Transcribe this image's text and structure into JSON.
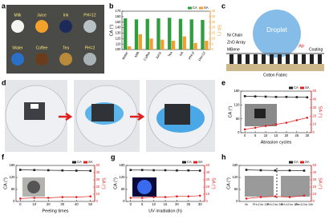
{
  "panel_labels": [
    "a",
    "b",
    "c",
    "d",
    "e",
    "f",
    "g",
    "h"
  ],
  "photo_a": {
    "labels": [
      "Milk",
      "Juice",
      "Ink",
      "PH=12",
      "Water",
      "Coffee",
      "Tea",
      "PH=2"
    ]
  },
  "diagram_c": {
    "labels": [
      "Droplet",
      "Ni Chain",
      "ZnO Array",
      "MBene",
      "Air",
      "Coating",
      "Cotton Fabric"
    ]
  },
  "chart_data": [
    {
      "type": "bar",
      "categories": [
        "Water",
        "Milk",
        "Coffee",
        "Juice",
        "Tea",
        "Ink",
        "PH=2",
        "PH=12"
      ],
      "series": [
        {
          "name": "CA",
          "color": "#2e9e3e",
          "values": [
            157,
            155,
            156,
            157,
            158,
            156,
            155,
            154
          ]
        },
        {
          "name": "SA",
          "color": "#f0a030",
          "axis": "y2",
          "values": [
            3,
            14,
            10,
            9,
            8,
            12,
            6,
            8
          ]
        }
      ],
      "ylabel": "CA (°)",
      "y2label": "SA (°)",
      "ylim": [
        100,
        170
      ],
      "yticks": [
        100,
        110,
        120,
        130,
        140,
        150,
        160,
        170
      ],
      "y2lim": [
        0,
        35
      ],
      "y2ticks": [
        0,
        5,
        10,
        15,
        20,
        25,
        30,
        35
      ]
    },
    {
      "type": "line",
      "x": [
        0,
        5,
        10,
        15,
        20,
        25,
        30
      ],
      "xlabel": "Abrasion cycles",
      "series": [
        {
          "name": "CA",
          "color": "#222222",
          "values": [
            158,
            157,
            156,
            155,
            155,
            154,
            153
          ]
        },
        {
          "name": "SA",
          "color": "#e02020",
          "axis": "y2",
          "values": [
            4,
            6,
            8,
            10,
            12,
            15,
            18
          ]
        }
      ],
      "ylabel": "CA (°)",
      "y2label": "SA (°)",
      "xlim": [
        -2,
        32
      ],
      "xticks": [
        0,
        5,
        10,
        15,
        20,
        25,
        30
      ],
      "ylim": [
        0,
        180
      ],
      "yticks": [
        0,
        60,
        120,
        180
      ],
      "y2lim": [
        0,
        50
      ],
      "y2ticks": [
        0,
        10,
        20,
        30,
        40,
        50
      ]
    },
    {
      "type": "line",
      "x": [
        0,
        10,
        20,
        30,
        40,
        50
      ],
      "xlabel": "Peeling times",
      "series": [
        {
          "name": "CA",
          "color": "#222222",
          "values": [
            158,
            157,
            156,
            155,
            154,
            153
          ]
        },
        {
          "name": "SA",
          "color": "#e02020",
          "axis": "y2",
          "values": [
            4,
            5,
            5,
            6,
            6,
            7
          ]
        }
      ],
      "ylabel": "CA (°)",
      "y2label": "SA (°)",
      "xlim": [
        -3,
        53
      ],
      "xticks": [
        0,
        10,
        20,
        30,
        40,
        50
      ],
      "ylim": [
        0,
        180
      ],
      "yticks": [
        0,
        60,
        120,
        180
      ],
      "y2lim": [
        0,
        50
      ],
      "y2ticks": [
        0,
        10,
        20,
        30,
        40,
        50
      ]
    },
    {
      "type": "line",
      "x": [
        0,
        5,
        10,
        15,
        20,
        25,
        30
      ],
      "xlabel": "UV irradiation (h)",
      "series": [
        {
          "name": "CA",
          "color": "#222222",
          "values": [
            157,
            157,
            156,
            156,
            155,
            155,
            154
          ]
        },
        {
          "name": "SA",
          "color": "#e02020",
          "axis": "y2",
          "values": [
            5,
            5,
            6,
            6,
            7,
            7,
            8
          ]
        }
      ],
      "ylabel": "CA (°)",
      "y2label": "SA (°)",
      "xlim": [
        -2,
        32
      ],
      "xticks": [
        0,
        5,
        10,
        15,
        20,
        25,
        30
      ],
      "ylim": [
        0,
        180
      ],
      "yticks": [
        0,
        60,
        120,
        180
      ],
      "y2lim": [
        0,
        50
      ],
      "y2ticks": [
        0,
        10,
        20,
        30,
        40,
        50
      ]
    },
    {
      "type": "line",
      "categories": [
        "0h",
        "PH=2 for 12h",
        "PH=2 for 24h",
        "PH=12 for 12h",
        "PH=12 for 24h"
      ],
      "series": [
        {
          "name": "CA",
          "color": "#222222",
          "values": [
            158,
            156,
            155,
            155,
            154
          ]
        },
        {
          "name": "SA",
          "color": "#e02020",
          "axis": "y2",
          "values": [
            4,
            6,
            7,
            6,
            8
          ]
        }
      ],
      "ylabel": "CA (°)",
      "y2label": "SA (°)",
      "ylim": [
        0,
        180
      ],
      "yticks": [
        0,
        60,
        120,
        180
      ],
      "y2lim": [
        0,
        50
      ],
      "y2ticks": [
        0,
        10,
        20,
        30,
        40,
        50
      ]
    }
  ]
}
